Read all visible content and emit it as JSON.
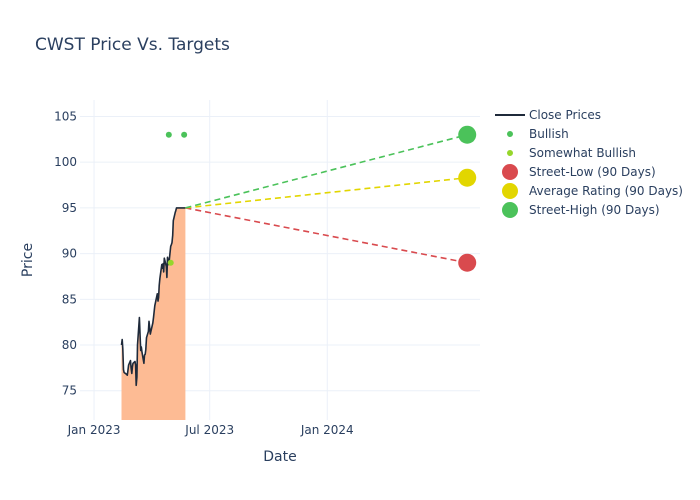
{
  "chart_data": {
    "type": "line",
    "title": "CWST Price Vs. Targets",
    "xlabel": "Date",
    "ylabel": "Price",
    "xlim": [
      "2022-12-10",
      "2024-08-27"
    ],
    "ylim": [
      71.8,
      106.8
    ],
    "x_ticks": [
      {
        "date": "2023-01-01",
        "label": "Jan 2023"
      },
      {
        "date": "2023-07-01",
        "label": "Jul 2023"
      },
      {
        "date": "2024-01-01",
        "label": "Jan 2024"
      }
    ],
    "y_ticks": [
      75,
      80,
      85,
      90,
      95,
      100,
      105
    ],
    "grid": true,
    "legend_position": "top-right",
    "series": [
      {
        "name": "Close Prices",
        "kind": "line-area",
        "color": "#1f2a3a",
        "fill": "#fdbb94",
        "x": [
          "2023-02-13",
          "2023-02-14",
          "2023-02-15",
          "2023-02-16",
          "2023-02-17",
          "2023-02-21",
          "2023-02-22",
          "2023-02-23",
          "2023-02-24",
          "2023-02-27",
          "2023-02-28",
          "2023-03-01",
          "2023-03-02",
          "2023-03-03",
          "2023-03-06",
          "2023-03-07",
          "2023-03-08",
          "2023-03-09",
          "2023-03-10",
          "2023-03-13",
          "2023-03-14",
          "2023-03-15",
          "2023-03-16",
          "2023-03-17",
          "2023-03-20",
          "2023-03-21",
          "2023-03-22",
          "2023-03-23",
          "2023-03-24",
          "2023-03-27",
          "2023-03-28",
          "2023-03-29",
          "2023-03-30",
          "2023-03-31",
          "2023-04-03",
          "2023-04-04",
          "2023-04-05",
          "2023-04-06",
          "2023-04-10",
          "2023-04-11",
          "2023-04-12",
          "2023-04-13",
          "2023-04-14",
          "2023-04-17",
          "2023-04-18",
          "2023-04-19",
          "2023-04-20",
          "2023-04-21",
          "2023-04-24",
          "2023-04-25",
          "2023-04-26",
          "2023-04-27",
          "2023-04-28",
          "2023-05-01",
          "2023-05-02",
          "2023-05-03",
          "2023-05-04",
          "2023-05-05",
          "2023-05-08",
          "2023-05-09",
          "2023-05-10",
          "2023-05-11",
          "2023-05-12",
          "2023-05-15",
          "2023-05-16",
          "2023-05-17",
          "2023-05-18",
          "2023-05-19",
          "2023-05-22",
          "2023-05-23",
          "2023-05-24"
        ],
        "values": [
          80.0,
          80.6,
          79.6,
          77.3,
          77.0,
          76.8,
          76.7,
          77.2,
          77.8,
          78.3,
          77.5,
          76.9,
          77.6,
          78.0,
          78.2,
          77.8,
          75.6,
          76.5,
          80.0,
          83.0,
          81.0,
          79.4,
          79.8,
          79.2,
          78.0,
          78.9,
          79.0,
          79.5,
          80.8,
          81.5,
          82.6,
          82.0,
          81.2,
          81.5,
          82.4,
          83.0,
          83.6,
          84.3,
          85.6,
          84.8,
          85.2,
          86.5,
          87.3,
          88.8,
          88.4,
          88.9,
          88.0,
          89.5,
          88.6,
          87.4,
          89.6,
          89.2,
          88.8,
          90.8,
          91.0,
          91.2,
          92.0,
          93.6,
          94.5,
          94.7,
          95.0,
          95.0,
          95.0,
          95.0,
          95.0,
          95.0,
          95.0,
          95.0,
          95.0,
          95.0,
          95.0
        ]
      },
      {
        "name": "Bullish",
        "kind": "markers",
        "color": "#4bc25a",
        "points": [
          {
            "x": "2023-04-28",
            "y": 103
          },
          {
            "x": "2023-05-22",
            "y": 103
          }
        ]
      },
      {
        "name": "Somewhat Bullish",
        "kind": "markers",
        "color": "#96d62b",
        "points": [
          {
            "x": "2023-05-01",
            "y": 89
          }
        ]
      },
      {
        "name": "Street-Low (90 Days)",
        "kind": "target",
        "color": "#d94a4e",
        "from": {
          "x": "2023-05-24",
          "y": 95.0
        },
        "to": {
          "x": "2024-08-07",
          "y": 89.0
        }
      },
      {
        "name": "Average Rating (90 Days)",
        "kind": "target",
        "color": "#e2d600",
        "from": {
          "x": "2023-05-24",
          "y": 95.0
        },
        "to": {
          "x": "2024-08-07",
          "y": 98.3
        }
      },
      {
        "name": "Street-High (90 Days)",
        "kind": "target",
        "color": "#4bc25a",
        "from": {
          "x": "2023-05-24",
          "y": 95.0
        },
        "to": {
          "x": "2024-08-07",
          "y": 103.0
        }
      }
    ]
  }
}
